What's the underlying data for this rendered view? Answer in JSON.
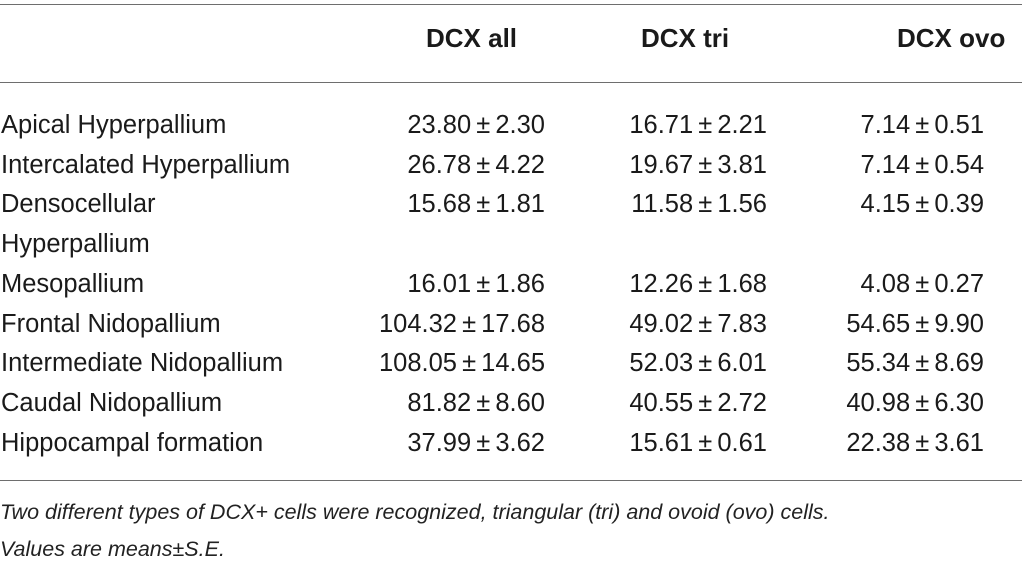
{
  "table": {
    "headers": [
      "",
      "DCX all",
      "DCX tri",
      "DCX ovo"
    ],
    "rows": [
      {
        "label": "Apical Hyperpallium",
        "all": "23.80 ± 2.30",
        "tri": "16.71 ± 2.21",
        "ovo": "7.14 ± 0.51"
      },
      {
        "label": "Intercalated Hyperpallium",
        "all": "26.78 ± 4.22",
        "tri": "19.67 ± 3.81",
        "ovo": "7.14 ± 0.54"
      },
      {
        "label": "Densocellular",
        "all": "15.68 ± 1.81",
        "tri": "11.58 ± 1.56",
        "ovo": "4.15 ± 0.39"
      },
      {
        "label": "Hyperpallium",
        "all": "",
        "tri": "",
        "ovo": ""
      },
      {
        "label": "Mesopallium",
        "all": "16.01 ± 1.86",
        "tri": "12.26 ± 1.68",
        "ovo": "4.08 ± 0.27"
      },
      {
        "label": "Frontal Nidopallium",
        "all": "104.32 ± 17.68",
        "tri": "49.02 ± 7.83",
        "ovo": "54.65 ± 9.90"
      },
      {
        "label": "Intermediate Nidopallium",
        "all": "108.05 ± 14.65",
        "tri": "52.03 ± 6.01",
        "ovo": "55.34 ± 8.69"
      },
      {
        "label": "Caudal Nidopallium",
        "all": "81.82 ± 8.60",
        "tri": "40.55 ± 2.72",
        "ovo": "40.98 ± 6.30"
      },
      {
        "label": "Hippocampal formation",
        "all": "37.99 ± 3.62",
        "tri": "15.61 ± 0.61",
        "ovo": "22.38 ± 3.61"
      }
    ]
  },
  "footnote": {
    "line1": "Two different types of DCX+ cells were recognized, triangular (tri) and ovoid (ovo) cells.",
    "line2": "Values are means±S.E."
  }
}
